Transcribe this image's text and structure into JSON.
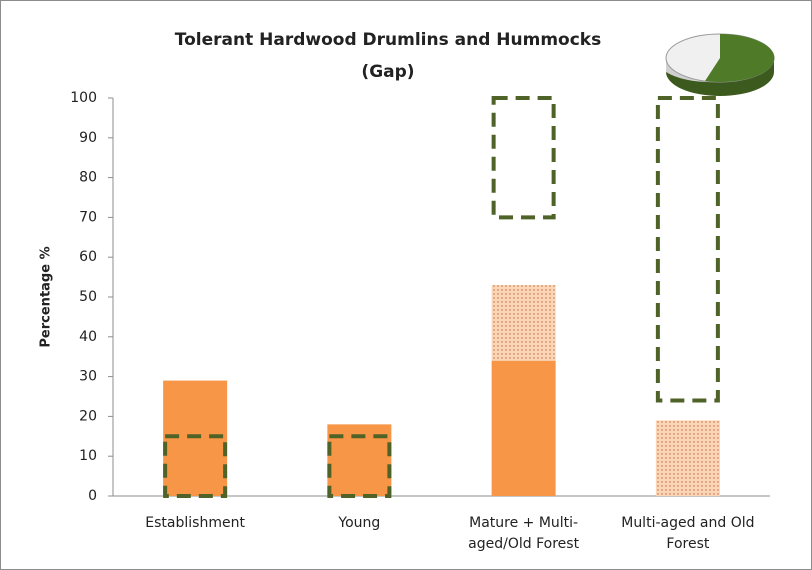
{
  "chart_data": {
    "type": "bar",
    "title": "Tolerant Hardwood Drumlins and Hummocks",
    "subtitle": "(Gap)",
    "y_label": "Percentage %",
    "categories": [
      "Establishment",
      "Young",
      "Mature + Multi-aged/Old Forest",
      "Multi-aged and Old Forest"
    ],
    "series": [
      {
        "color": "#f79646",
        "pattern": "solid",
        "values": [
          29,
          18,
          34,
          null
        ]
      },
      {
        "color": "#fbd5b5",
        "pattern": "dots",
        "values": [
          null,
          null,
          19,
          19
        ]
      }
    ],
    "ranges": {
      "color": "#4f6228",
      "low": [
        0,
        0,
        70,
        24
      ],
      "high": [
        15,
        15,
        100,
        100
      ]
    },
    "stacked": true,
    "ylim": [
      0,
      100
    ],
    "yticks": [
      0,
      10,
      20,
      30,
      40,
      50,
      60,
      70,
      80,
      90,
      100
    ],
    "grid": false
  }
}
